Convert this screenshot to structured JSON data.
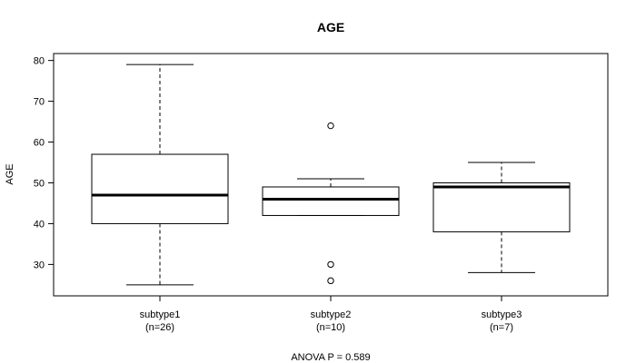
{
  "chart_data": {
    "type": "box",
    "title": "AGE",
    "ylabel": "AGE",
    "xlabel": "ANOVA P = 0.589",
    "ylim": [
      22.3,
      81.7
    ],
    "yticks": [
      30,
      40,
      50,
      60,
      70,
      80
    ],
    "groups": [
      {
        "name": "subtype1",
        "n_label": "(n=26)",
        "whisker_low": 25,
        "q1": 40,
        "median": 47,
        "q3": 57,
        "whisker_high": 79,
        "outliers": []
      },
      {
        "name": "subtype2",
        "n_label": "(n=10)",
        "whisker_low": 42,
        "q1": 42,
        "median": 46,
        "q3": 49,
        "whisker_high": 51,
        "outliers": [
          64,
          30,
          26
        ]
      },
      {
        "name": "subtype3",
        "n_label": "(n=7)",
        "whisker_low": 28,
        "q1": 38,
        "median": 49,
        "q3": 50,
        "whisker_high": 55,
        "outliers": []
      }
    ]
  }
}
